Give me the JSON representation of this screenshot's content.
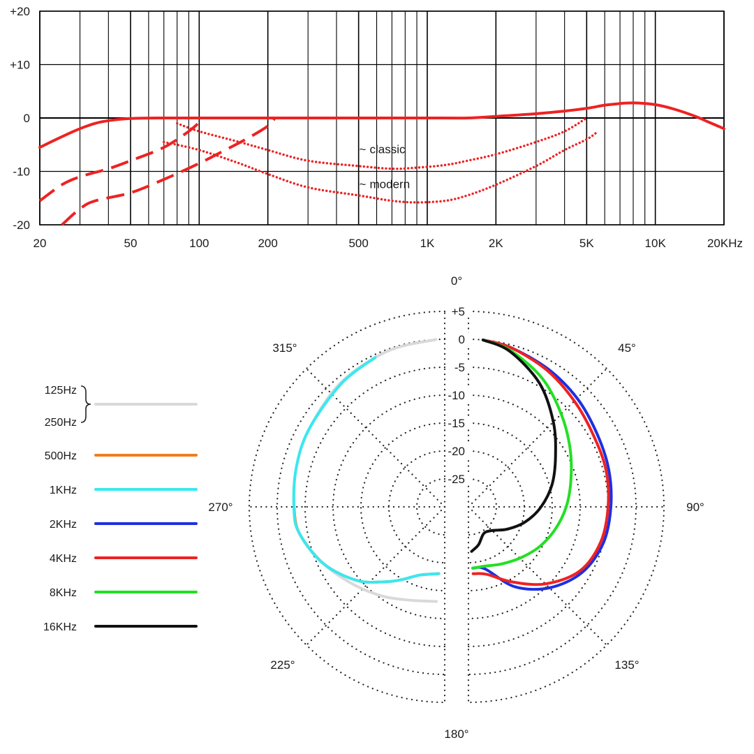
{
  "chart_data": [
    {
      "type": "line",
      "scale_x": "log",
      "xlim": [
        20,
        20000
      ],
      "ylim": [
        -20,
        20
      ],
      "grid": true,
      "x_tick_labels": [
        "20",
        "50",
        "100",
        "200",
        "500",
        "1K",
        "2K",
        "5K",
        "10K",
        "20KHz"
      ],
      "x_tick_values": [
        20,
        50,
        100,
        200,
        500,
        1000,
        2000,
        5000,
        10000,
        20000
      ],
      "y_tick_labels": [
        "+20",
        "+10",
        "0",
        "-10",
        "-20"
      ],
      "y_tick_values": [
        20,
        10,
        0,
        -10,
        -20
      ],
      "annotations": [
        {
          "text": "classic",
          "symbol": "~",
          "x": 600,
          "y": -7
        },
        {
          "text": "modern",
          "symbol": "~",
          "x": 600,
          "y": -13.5
        }
      ],
      "series": [
        {
          "style": "solid",
          "color": "#ee2222",
          "points": [
            [
              20,
              -5.5
            ],
            [
              25,
              -3.5
            ],
            [
              30,
              -2
            ],
            [
              35,
              -1
            ],
            [
              40,
              -0.5
            ],
            [
              50,
              -0.1
            ],
            [
              70,
              0
            ],
            [
              100,
              0
            ],
            [
              1000,
              0
            ],
            [
              1500,
              0
            ],
            [
              2000,
              0.3
            ],
            [
              3000,
              0.8
            ],
            [
              4000,
              1.3
            ],
            [
              5000,
              1.8
            ],
            [
              6000,
              2.4
            ],
            [
              7000,
              2.7
            ],
            [
              7500,
              2.8
            ],
            [
              8500,
              2.8
            ],
            [
              10000,
              2.5
            ],
            [
              12000,
              1.7
            ],
            [
              15000,
              0.3
            ],
            [
              17000,
              -0.7
            ],
            [
              20000,
              -2
            ]
          ]
        },
        {
          "style": "dashed",
          "color": "#ee2222",
          "points": [
            [
              20,
              -15.5
            ],
            [
              25,
              -12.5
            ],
            [
              30,
              -11
            ],
            [
              40,
              -9.5
            ],
            [
              50,
              -8
            ],
            [
              70,
              -5.5
            ],
            [
              90,
              -2.5
            ],
            [
              105,
              0
            ]
          ]
        },
        {
          "style": "dashed",
          "color": "#ee2222",
          "points": [
            [
              25,
              -20
            ],
            [
              30,
              -17
            ],
            [
              35,
              -15.5
            ],
            [
              50,
              -14
            ],
            [
              70,
              -11.5
            ],
            [
              100,
              -8.5
            ],
            [
              130,
              -6
            ],
            [
              160,
              -4
            ],
            [
              200,
              -1.5
            ],
            [
              215,
              0
            ]
          ]
        },
        {
          "style": "dotted",
          "color": "#ee2222",
          "points": [
            [
              80,
              -1
            ],
            [
              100,
              -2.5
            ],
            [
              150,
              -4.5
            ],
            [
              200,
              -6
            ],
            [
              300,
              -8
            ],
            [
              500,
              -9
            ],
            [
              700,
              -9.5
            ],
            [
              900,
              -9.3
            ],
            [
              1200,
              -8.8
            ],
            [
              1500,
              -8
            ],
            [
              2000,
              -6.8
            ],
            [
              3000,
              -4.5
            ],
            [
              4000,
              -2.5
            ],
            [
              5000,
              0
            ]
          ]
        },
        {
          "style": "dotted",
          "color": "#ee2222",
          "points": [
            [
              70,
              -4.5
            ],
            [
              100,
              -6
            ],
            [
              150,
              -8.5
            ],
            [
              200,
              -10.5
            ],
            [
              300,
              -13
            ],
            [
              500,
              -14.5
            ],
            [
              700,
              -15.5
            ],
            [
              900,
              -15.8
            ],
            [
              1200,
              -15.5
            ],
            [
              1500,
              -14.5
            ],
            [
              2000,
              -12.5
            ],
            [
              3000,
              -9
            ],
            [
              4000,
              -6
            ],
            [
              5000,
              -4
            ],
            [
              5500,
              -2.8
            ]
          ]
        }
      ]
    },
    {
      "type": "polar",
      "angle_labels": [
        "0°",
        "45°",
        "90°",
        "135°",
        "180°",
        "225°",
        "270°",
        "315°"
      ],
      "angle_values": [
        0,
        45,
        90,
        135,
        180,
        225,
        270,
        315
      ],
      "radial_labels": [
        "+5",
        "0",
        "-5",
        "-10",
        "-15",
        "-20",
        "-25"
      ],
      "radial_values": [
        5,
        0,
        -5,
        -10,
        -15,
        -20,
        -25
      ],
      "rlim": [
        -30,
        5
      ],
      "grid": "dotted",
      "legend_position": "left",
      "legend_group": {
        "labels": [
          "125Hz",
          "250Hz"
        ],
        "color": "#d9d9d9"
      },
      "series": [
        {
          "name": "125Hz / 250Hz",
          "color": "#d9d9d9",
          "points": [
            [
              357,
              0
            ],
            [
              340,
              -0.3
            ],
            [
              320,
              -1
            ],
            [
              300,
              -2
            ],
            [
              285,
              -2.5
            ],
            [
              270,
              -3
            ],
            [
              260,
              -3.5
            ],
            [
              245,
              -6
            ],
            [
              230,
              -8.5
            ],
            [
              215,
              -10.5
            ],
            [
              200,
              -12.2
            ],
            [
              185,
              -13
            ]
          ]
        },
        {
          "name": "500Hz",
          "color": "#f07c1c",
          "points": [
            [
              270,
              -3
            ],
            [
              260,
              -3.5
            ],
            [
              245,
              -6
            ],
            [
              230,
              -9.5
            ],
            [
              218,
              -13
            ],
            [
              210,
              -15
            ],
            [
              200,
              -17
            ],
            [
              185,
              -18
            ]
          ]
        },
        {
          "name": "1KHz",
          "color": "#39e8f0",
          "points": [
            [
              335,
              -0.5
            ],
            [
              320,
              -1.2
            ],
            [
              300,
              -2
            ],
            [
              285,
              -2.5
            ],
            [
              270,
              -3
            ],
            [
              260,
              -3.5
            ],
            [
              245,
              -6
            ],
            [
              230,
              -9.5
            ],
            [
              218,
              -13
            ],
            [
              210,
              -15
            ],
            [
              200,
              -17
            ],
            [
              185,
              -18
            ]
          ]
        },
        {
          "name": "2KHz",
          "color": "#1f2fe0",
          "points": [
            [
              5,
              0
            ],
            [
              15,
              -0.5
            ],
            [
              30,
              -1.5
            ],
            [
              45,
              -2.5
            ],
            [
              60,
              -3.5
            ],
            [
              75,
              -4
            ],
            [
              90,
              -4.5
            ],
            [
              105,
              -5
            ],
            [
              120,
              -6.5
            ],
            [
              135,
              -9.5
            ],
            [
              150,
              -13.5
            ],
            [
              165,
              -18.5
            ],
            [
              176,
              -19
            ]
          ]
        },
        {
          "name": "4KHz",
          "color": "#ee2222",
          "points": [
            [
              5,
              0
            ],
            [
              15,
              -0.5
            ],
            [
              30,
              -1.8
            ],
            [
              45,
              -3.2
            ],
            [
              60,
              -4.2
            ],
            [
              75,
              -4.5
            ],
            [
              90,
              -5
            ],
            [
              105,
              -5.5
            ],
            [
              120,
              -7
            ],
            [
              135,
              -10.5
            ],
            [
              150,
              -14.5
            ],
            [
              165,
              -17.5
            ],
            [
              176,
              -18
            ]
          ]
        },
        {
          "name": "8KHz",
          "color": "#22e022",
          "points": [
            [
              5,
              0
            ],
            [
              15,
              -1
            ],
            [
              30,
              -3.5
            ],
            [
              45,
              -6.5
            ],
            [
              60,
              -9
            ],
            [
              75,
              -11
            ],
            [
              90,
              -12.5
            ],
            [
              105,
              -14
            ],
            [
              120,
              -15.5
            ],
            [
              135,
              -17
            ],
            [
              150,
              -18.2
            ],
            [
              165,
              -19
            ],
            [
              176,
              -19
            ]
          ]
        },
        {
          "name": "16KHz",
          "color": "#111111",
          "points": [
            [
              5,
              0
            ],
            [
              15,
              -1.2
            ],
            [
              30,
              -4.5
            ],
            [
              45,
              -8.5
            ],
            [
              60,
              -12
            ],
            [
              75,
              -14.5
            ],
            [
              90,
              -17
            ],
            [
              105,
              -19.5
            ],
            [
              120,
              -22
            ],
            [
              135,
              -24
            ],
            [
              150,
              -24.5
            ],
            [
              165,
              -23
            ],
            [
              176,
              -22
            ]
          ]
        }
      ]
    }
  ]
}
